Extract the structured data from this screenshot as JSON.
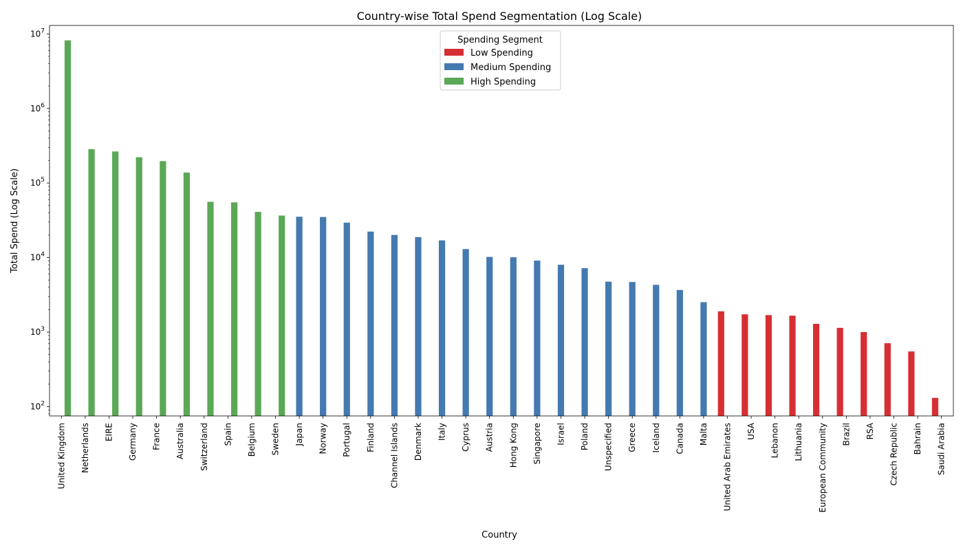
{
  "chart_data": {
    "type": "bar",
    "title": "Country-wise Total Spend Segmentation (Log Scale)",
    "xlabel": "Country",
    "ylabel": "Total Spend (Log Scale)",
    "y_scale": "log",
    "ylim": [
      75,
      13000000
    ],
    "y_ticks": [
      100,
      1000,
      10000,
      100000,
      1000000,
      10000000
    ],
    "y_tick_labels": [
      {
        "base": "10",
        "exp": "2"
      },
      {
        "base": "10",
        "exp": "3"
      },
      {
        "base": "10",
        "exp": "4"
      },
      {
        "base": "10",
        "exp": "5"
      },
      {
        "base": "10",
        "exp": "6"
      },
      {
        "base": "10",
        "exp": "7"
      }
    ],
    "grid": false,
    "legend": {
      "title": "Spending Segment",
      "placement": "top-center",
      "entries": [
        "Low Spending",
        "Medium Spending",
        "High Spending"
      ]
    },
    "series": [
      {
        "name": "Low Spending",
        "color": "#d62f33"
      },
      {
        "name": "Medium Spending",
        "color": "#447ab0"
      },
      {
        "name": "High Spending",
        "color": "#5ba856"
      }
    ],
    "categories": [
      "United Kingdom",
      "Netherlands",
      "EIRE",
      "Germany",
      "France",
      "Australia",
      "Switzerland",
      "Spain",
      "Belgium",
      "Sweden",
      "Japan",
      "Norway",
      "Portugal",
      "Finland",
      "Channel Islands",
      "Denmark",
      "Italy",
      "Cyprus",
      "Austria",
      "Hong Kong",
      "Singapore",
      "Israel",
      "Poland",
      "Unspecified",
      "Greece",
      "Iceland",
      "Canada",
      "Malta",
      "United Arab Emirates",
      "USA",
      "Lebanon",
      "Lithuania",
      "European Community",
      "Brazil",
      "RSA",
      "Czech Republic",
      "Bahrain",
      "Saudi Arabia"
    ],
    "values": [
      8200000,
      285000,
      265000,
      222000,
      197000,
      138000,
      56000,
      55000,
      41000,
      36600,
      35300,
      35000,
      29400,
      22300,
      20100,
      18800,
      17000,
      13000,
      10200,
      10100,
      9100,
      8000,
      7200,
      4750,
      4700,
      4300,
      3670,
      2520,
      1900,
      1730,
      1690,
      1660,
      1290,
      1140,
      1000,
      710,
      550,
      131
    ],
    "segments": [
      "High Spending",
      "High Spending",
      "High Spending",
      "High Spending",
      "High Spending",
      "High Spending",
      "High Spending",
      "High Spending",
      "High Spending",
      "High Spending",
      "Medium Spending",
      "Medium Spending",
      "Medium Spending",
      "Medium Spending",
      "Medium Spending",
      "Medium Spending",
      "Medium Spending",
      "Medium Spending",
      "Medium Spending",
      "Medium Spending",
      "Medium Spending",
      "Medium Spending",
      "Medium Spending",
      "Medium Spending",
      "Medium Spending",
      "Medium Spending",
      "Medium Spending",
      "Medium Spending",
      "Low Spending",
      "Low Spending",
      "Low Spending",
      "Low Spending",
      "Low Spending",
      "Low Spending",
      "Low Spending",
      "Low Spending",
      "Low Spending",
      "Low Spending"
    ]
  }
}
